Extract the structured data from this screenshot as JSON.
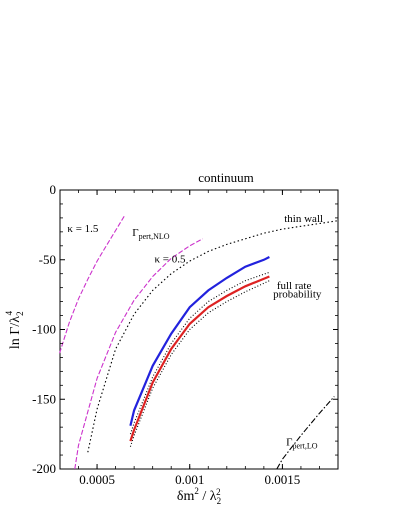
{
  "chart_data": {
    "type": "line",
    "title": "continuum",
    "xlabel": {
      "main": "δm",
      "sup": "2",
      "mid": " / λ",
      "sub": "2",
      "sup2": "2"
    },
    "ylabel": {
      "main": "ln Γ/λ",
      "sub": "2",
      "sup": "4"
    },
    "xlim": [
      0.0003,
      0.0018
    ],
    "ylim": [
      -200,
      0
    ],
    "x_ticks": [
      {
        "value": 0.0005,
        "label": "0.0005"
      },
      {
        "value": 0.001,
        "label": "0.001"
      },
      {
        "value": 0.0015,
        "label": "0.0015"
      }
    ],
    "y_ticks": [
      {
        "value": 0,
        "label": "0"
      },
      {
        "value": -50,
        "label": "-50"
      },
      {
        "value": -100,
        "label": "-100"
      },
      {
        "value": -150,
        "label": "-150"
      },
      {
        "value": -200,
        "label": "-200"
      }
    ],
    "grid": false,
    "series": [
      {
        "color": "#cc33cc",
        "dash": "5,2",
        "x": [
          0.000298,
          0.00035,
          0.0004,
          0.00045,
          0.0005,
          0.00055,
          0.0006,
          0.00065
        ],
        "y": [
          -117,
          -95,
          -78,
          -64,
          -51,
          -40,
          -29,
          -18
        ]
      },
      {
        "color": "#cc33cc",
        "dash": "5,2",
        "x": [
          0.00038,
          0.0004,
          0.0005,
          0.0006,
          0.0007,
          0.0008,
          0.0009,
          0.001,
          0.00107
        ],
        "y": [
          -200,
          -183,
          -135,
          -102,
          -79,
          -62,
          -49,
          -40,
          -35
        ]
      },
      {
        "color": "#000000",
        "dash": "1.5,2.5",
        "x": [
          0.00045,
          0.0005,
          0.0006,
          0.0007,
          0.0008,
          0.0009,
          0.001,
          0.0011,
          0.0012,
          0.0013,
          0.0014,
          0.0015,
          0.0016,
          0.0017,
          0.0018
        ],
        "y": [
          -188,
          -157,
          -114,
          -89,
          -72,
          -60,
          -51,
          -44,
          -39,
          -35,
          -31,
          -28,
          -26,
          -24,
          -22
        ]
      },
      {
        "color": "#2222dd",
        "dash": "",
        "x": [
          0.00068,
          0.0007,
          0.0008,
          0.0009,
          0.001,
          0.0011,
          0.0012,
          0.0013,
          0.0014,
          0.00143
        ],
        "y": [
          -169,
          -158,
          -126,
          -103,
          -84,
          -72,
          -63,
          -55,
          -50,
          -48
        ]
      },
      {
        "color": "#dd2222",
        "dash": "",
        "x": [
          0.00068,
          0.0007,
          0.0008,
          0.0009,
          0.001,
          0.0011,
          0.0012,
          0.0013,
          0.00143
        ],
        "y": [
          -180,
          -172,
          -138,
          -114,
          -96,
          -84,
          -76,
          -69,
          -62
        ]
      },
      {
        "color": "#000000",
        "dash": "1,2",
        "x": [
          0.00068,
          0.0007,
          0.0008,
          0.0009,
          0.001,
          0.0011,
          0.0012,
          0.0013,
          0.00143
        ],
        "y": [
          -175,
          -167,
          -134,
          -110,
          -92,
          -80,
          -72,
          -65,
          -59
        ]
      },
      {
        "color": "#000000",
        "dash": "1,2",
        "x": [
          0.00068,
          0.0007,
          0.0008,
          0.0009,
          0.001,
          0.0011,
          0.0012,
          0.0013,
          0.00143
        ],
        "y": [
          -184,
          -176,
          -142,
          -118,
          -100,
          -88,
          -80,
          -73,
          -65
        ]
      },
      {
        "color": "#000000",
        "dash": "6,2,1.5,2",
        "x": [
          0.00147,
          0.0015,
          0.0016,
          0.0017,
          0.00178
        ],
        "y": [
          -200,
          -193,
          -176,
          -160,
          -148
        ]
      }
    ],
    "annotations": [
      {
        "parts": [
          {
            "t": "κ = 1.5"
          }
        ],
        "x": 0.00034,
        "y": -30
      },
      {
        "parts": [
          {
            "t": "Γ"
          },
          {
            "t": "pert,NLO",
            "sub": true
          }
        ],
        "x": 0.00069,
        "y": -33
      },
      {
        "parts": [
          {
            "t": "κ = 0.5"
          }
        ],
        "x": 0.00081,
        "y": -52
      },
      {
        "parts": [
          {
            "t": "thin wall"
          }
        ],
        "x": 0.00151,
        "y": -23
      },
      {
        "parts": [
          {
            "t": "probability"
          }
        ],
        "x": 0.00145,
        "y": -77
      },
      {
        "parts": [
          {
            "t": "full rate"
          }
        ],
        "x": 0.00147,
        "y": -71
      },
      {
        "parts": [
          {
            "t": "Γ"
          },
          {
            "t": "pert,LO",
            "sub": true
          }
        ],
        "x": 0.00152,
        "y": -183
      }
    ]
  }
}
